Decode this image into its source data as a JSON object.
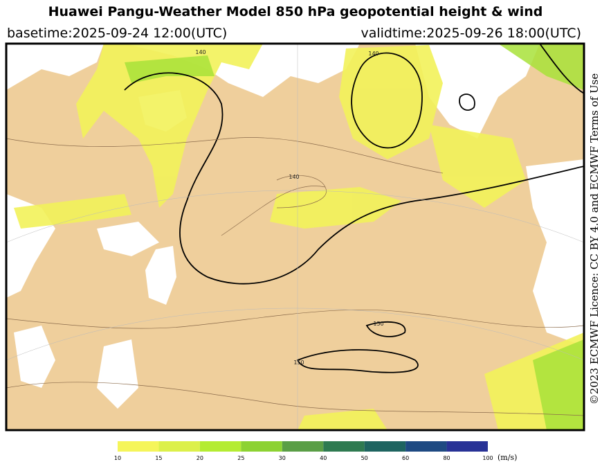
{
  "header": {
    "title": "Huawei Pangu-Weather Model 850 hPa geopotential height & wind",
    "basetime": "basetime:2025-09-24 12:00(UTC)",
    "validtime": "validtime:2025-09-26 18:00(UTC)"
  },
  "licence": "©2023 ECMWF Licence: CC BY 4.0 and ECMWF Terms of Use",
  "contour_labels": [
    140,
    140,
    150,
    150,
    140
  ],
  "colorbar": {
    "bounds": [
      10,
      15,
      20,
      25,
      30,
      40,
      50,
      60,
      80,
      100
    ],
    "colors": [
      "#f5f55a",
      "#dcf04a",
      "#b4ec32",
      "#8cd232",
      "#5a9e46",
      "#2e7a50",
      "#1e6460",
      "#1e4a82",
      "#283296"
    ],
    "unit": "(m/s)"
  }
}
